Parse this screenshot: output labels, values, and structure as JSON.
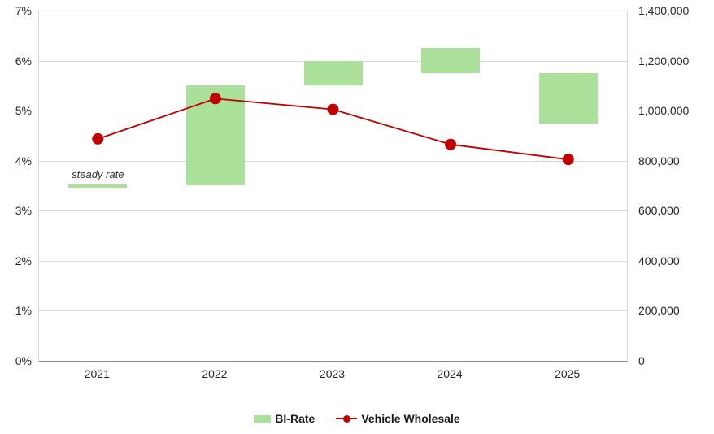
{
  "chart_data": {
    "type": "combo",
    "categories": [
      "2021",
      "2022",
      "2023",
      "2024",
      "2025"
    ],
    "series": [
      {
        "name": "BI-Rate",
        "type": "range-bar",
        "axis": "left",
        "unit": "%",
        "ranges": [
          [
            3.5,
            3.5
          ],
          [
            3.5,
            5.5
          ],
          [
            5.5,
            6.0
          ],
          [
            5.75,
            6.25
          ],
          [
            4.75,
            5.75
          ]
        ],
        "color": "#ABE09B"
      },
      {
        "name": "Vehicle Wholesale",
        "type": "line",
        "axis": "right",
        "unit": "units",
        "values": [
          887000,
          1048000,
          1005000,
          865000,
          805000
        ],
        "color": "#C00000"
      }
    ],
    "left_axis": {
      "min": 0,
      "max": 7,
      "ticks": [
        "0%",
        "1%",
        "2%",
        "3%",
        "4%",
        "5%",
        "6%",
        "7%"
      ]
    },
    "right_axis": {
      "min": 0,
      "max": 1400000,
      "ticks": [
        "0",
        "200,000",
        "400,000",
        "600,000",
        "800,000",
        "1,000,000",
        "1,200,000",
        "1,400,000"
      ]
    },
    "annotation": {
      "text": "steady rate",
      "category_index": 0,
      "value": 3.5
    },
    "grid": true,
    "legend_position": "bottom",
    "legend": [
      {
        "label": "BI-Rate",
        "swatch": "bar",
        "color": "#ABE09B"
      },
      {
        "label": "Vehicle Wholesale",
        "swatch": "line-dot",
        "color": "#C00000"
      }
    ]
  },
  "colors": {
    "bar_green": "#ABE09B",
    "line_red": "#C00000",
    "gridline": "#d9d9d9",
    "axis_line": "#8c8c8c",
    "tick_text": "#262626",
    "annotation_text": "#333333"
  }
}
